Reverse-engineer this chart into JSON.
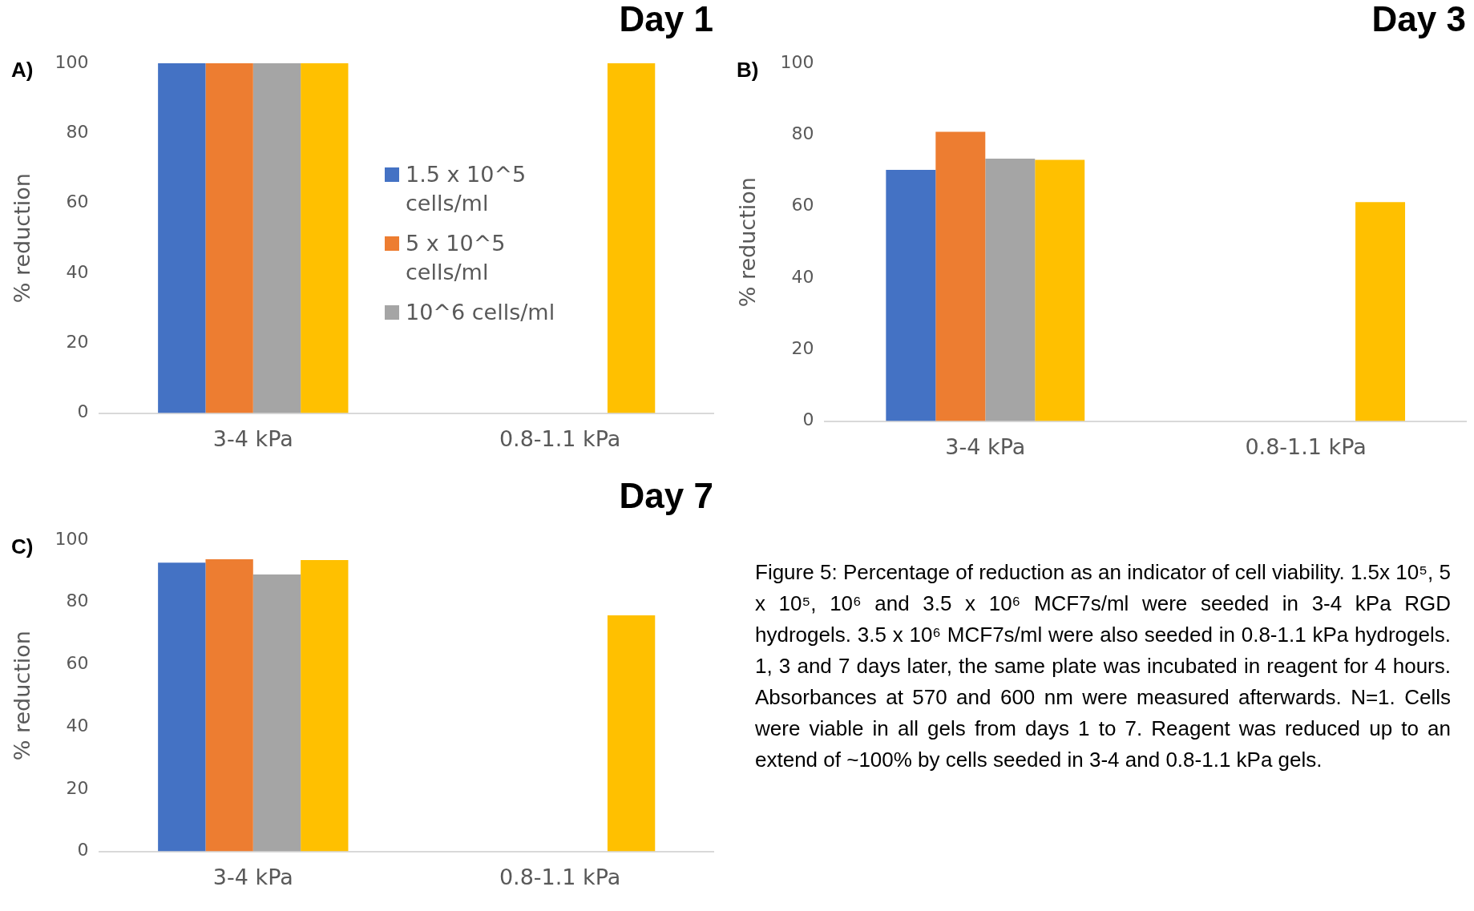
{
  "chart_data": [
    {
      "type": "bar",
      "title": "Day 1",
      "ylabel": "% reduction",
      "categories": [
        "3-4 kPa",
        "0.8-1.1 kPa"
      ],
      "ylim": [
        0,
        100
      ],
      "yticks": [
        0,
        20,
        40,
        60,
        80,
        100
      ],
      "grid": false,
      "legend": "right",
      "annotations": [
        "A)"
      ],
      "series": [
        {
          "name": "1.5 x 10^5 cells/ml",
          "color": "#4472c4",
          "values": [
            100,
            null
          ]
        },
        {
          "name": "5 x 10^5 cells/ml",
          "color": "#ed7d31",
          "values": [
            100,
            null
          ]
        },
        {
          "name": "10^6 cells/ml",
          "color": "#a5a5a5",
          "values": [
            100,
            null
          ]
        },
        {
          "color": "#ffc000",
          "values": [
            100,
            100
          ]
        }
      ]
    },
    {
      "type": "bar",
      "title": "Day 3",
      "ylabel": "% reduction",
      "categories": [
        "3-4 kPa",
        "0.8-1.1 kPa"
      ],
      "ylim": [
        0,
        100
      ],
      "yticks": [
        0,
        20,
        40,
        60,
        80,
        100
      ],
      "grid": false,
      "annotations": [
        "B)"
      ],
      "series": [
        {
          "color": "#4472c4",
          "values": [
            70.2,
            null
          ]
        },
        {
          "color": "#ed7d31",
          "values": [
            80.8,
            null
          ]
        },
        {
          "color": "#a5a5a5",
          "values": [
            73.3,
            null
          ]
        },
        {
          "color": "#ffc000",
          "values": [
            73,
            61.2
          ]
        }
      ]
    },
    {
      "type": "bar",
      "title": "Day 7",
      "ylabel": "% reduction",
      "categories": [
        "3-4 kPa",
        "0.8-1.1 kPa"
      ],
      "ylim": [
        0,
        100
      ],
      "yticks": [
        0,
        20,
        40,
        60,
        80,
        100
      ],
      "grid": false,
      "annotations": [
        "C)"
      ],
      "series": [
        {
          "color": "#4472c4",
          "values": [
            92.7,
            null
          ]
        },
        {
          "color": "#ed7d31",
          "values": [
            93.8,
            null
          ]
        },
        {
          "color": "#a5a5a5",
          "values": [
            88.9,
            null
          ]
        },
        {
          "color": "#ffc000",
          "values": [
            93.5,
            75.8
          ]
        }
      ]
    },
    {
      "type": "other",
      "annotations": [
        "Figure 5: Percentage of reduction as an indicator of cell viability. 1.5x 10⁵, 5 x 10⁵, 10⁶ and 3.5 x 10⁶ MCF7s/ml were seeded in 3-4 kPa RGD hydrogels. 3.5 x 10⁶ MCF7s/ml were also seeded in 0.8-1.1 kPa hydrogels. 1, 3 and 7 days later, the same plate was incubated in reagent for 4 hours. Absorbances at 570 and 600 nm were measured afterwards. N=1. Cells were viable in all gels from days 1 to 7. Reagent was reduced up to an extend of ~100% by cells seeded in 3-4 and 0.8-1.1 kPa gels."
      ]
    }
  ]
}
